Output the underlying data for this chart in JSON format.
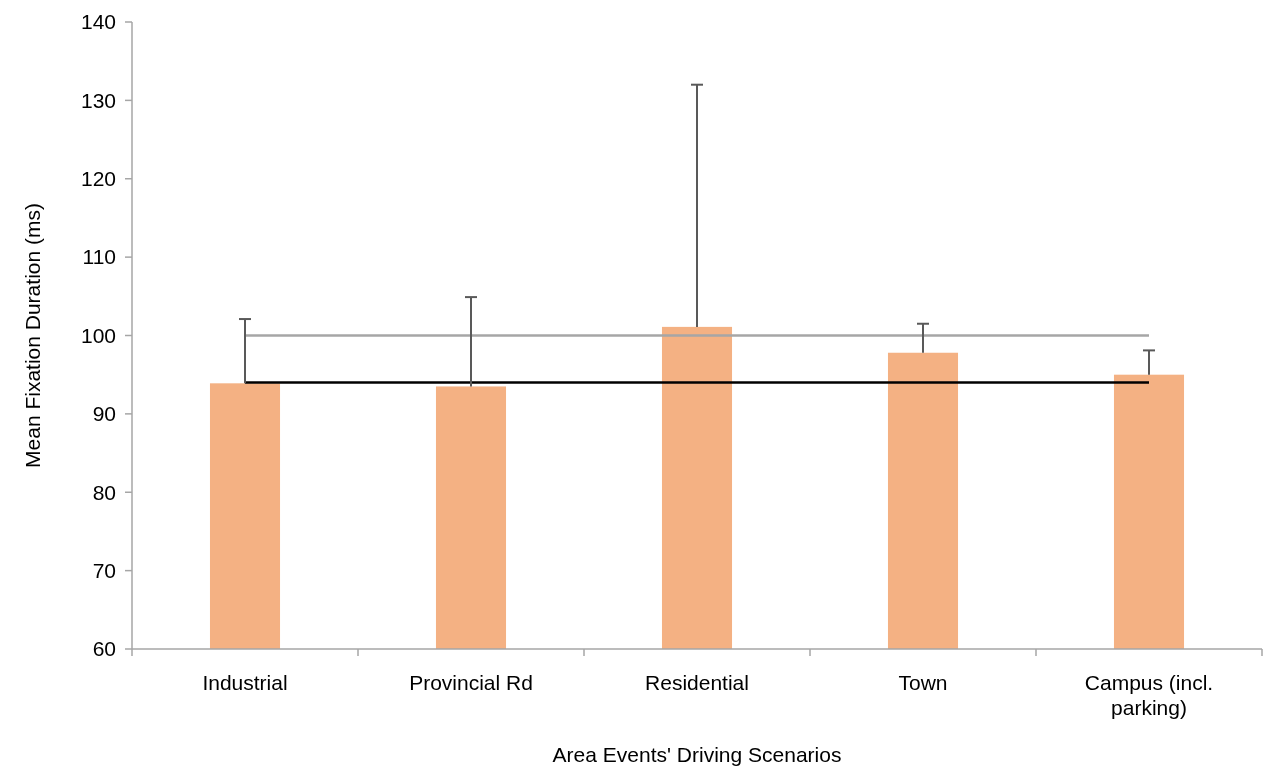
{
  "chart_data": {
    "type": "bar",
    "xlabel": "Area Events' Driving Scenarios",
    "ylabel": "Mean Fixation Duration (ms)",
    "categories": [
      "Industrial",
      "Provincial Rd",
      "Residential",
      "Town",
      "Campus (incl. parking)"
    ],
    "values": [
      93.9,
      93.5,
      101.1,
      97.8,
      95.0
    ],
    "errors": [
      [
        93.9,
        102.1
      ],
      [
        93.5,
        104.9
      ],
      [
        101.1,
        132.0
      ],
      [
        97.8,
        101.5
      ],
      [
        95.0,
        98.1
      ]
    ],
    "color": "#f4b183",
    "ylim": [
      60,
      140
    ],
    "yticks": [
      60,
      70,
      80,
      90,
      100,
      110,
      120,
      130,
      140
    ],
    "ref_lines": [
      {
        "axis": "y",
        "value": 100,
        "color": "#a6a6a6"
      },
      {
        "axis": "y",
        "value": 94,
        "color": "#000000"
      }
    ]
  }
}
